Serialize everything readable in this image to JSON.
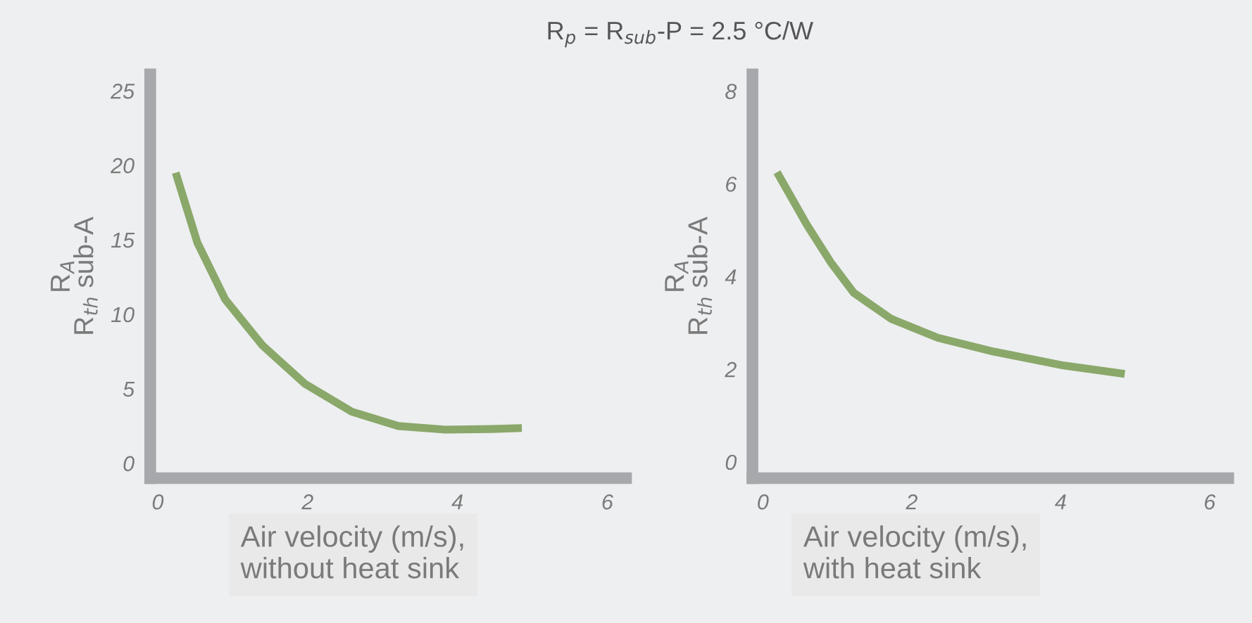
{
  "chart_data": [
    {
      "type": "line",
      "title": "R$_{p}$ = R$_{sub}$-P = 2.5 °C/W",
      "xlabel": "Air velocity (m/s),\nwithout heat sink",
      "ylabel": "R$_{A}$\nR$_{th}$ sub-A",
      "x": [
        0.24,
        0.53,
        0.9,
        1.4,
        1.96,
        2.59,
        3.21,
        3.84,
        4.46,
        4.86
      ],
      "series": [
        {
          "color": "#8aa86a",
          "values": [
            19.5,
            14.8,
            11.0,
            7.9,
            5.35,
            3.46,
            2.5,
            2.26,
            2.3,
            2.36
          ]
        }
      ],
      "xlim": [
        -0.1,
        6.25
      ],
      "ylim": [
        -1,
        26.1
      ],
      "xticks": [
        0,
        2,
        4,
        6
      ],
      "yticks": [
        0,
        5,
        10,
        15,
        20,
        25
      ],
      "grid": false,
      "legend": false,
      "marker": "none",
      "line_style": "solid"
    },
    {
      "type": "line",
      "xlabel": "Air velocity (m/s),\nwith heat sink",
      "ylabel": "R$_{A}$\nR$_{th}$ sub-A",
      "x": [
        0.19,
        0.59,
        0.91,
        1.22,
        1.72,
        2.35,
        3.1,
        4.04,
        4.86
      ],
      "series": [
        {
          "color": "#8aa86a",
          "values": [
            6.25,
            5.12,
            4.31,
            3.65,
            3.09,
            2.68,
            2.38,
            2.08,
            1.9
          ]
        }
      ],
      "xlim": [
        -0.14,
        6.25
      ],
      "ylim": [
        -0.35,
        8.36
      ],
      "xticks": [
        0,
        2,
        4,
        6
      ],
      "yticks": [
        0,
        2,
        4,
        6,
        8
      ],
      "grid": false,
      "legend": false,
      "marker": "none",
      "line_style": "solid"
    }
  ]
}
